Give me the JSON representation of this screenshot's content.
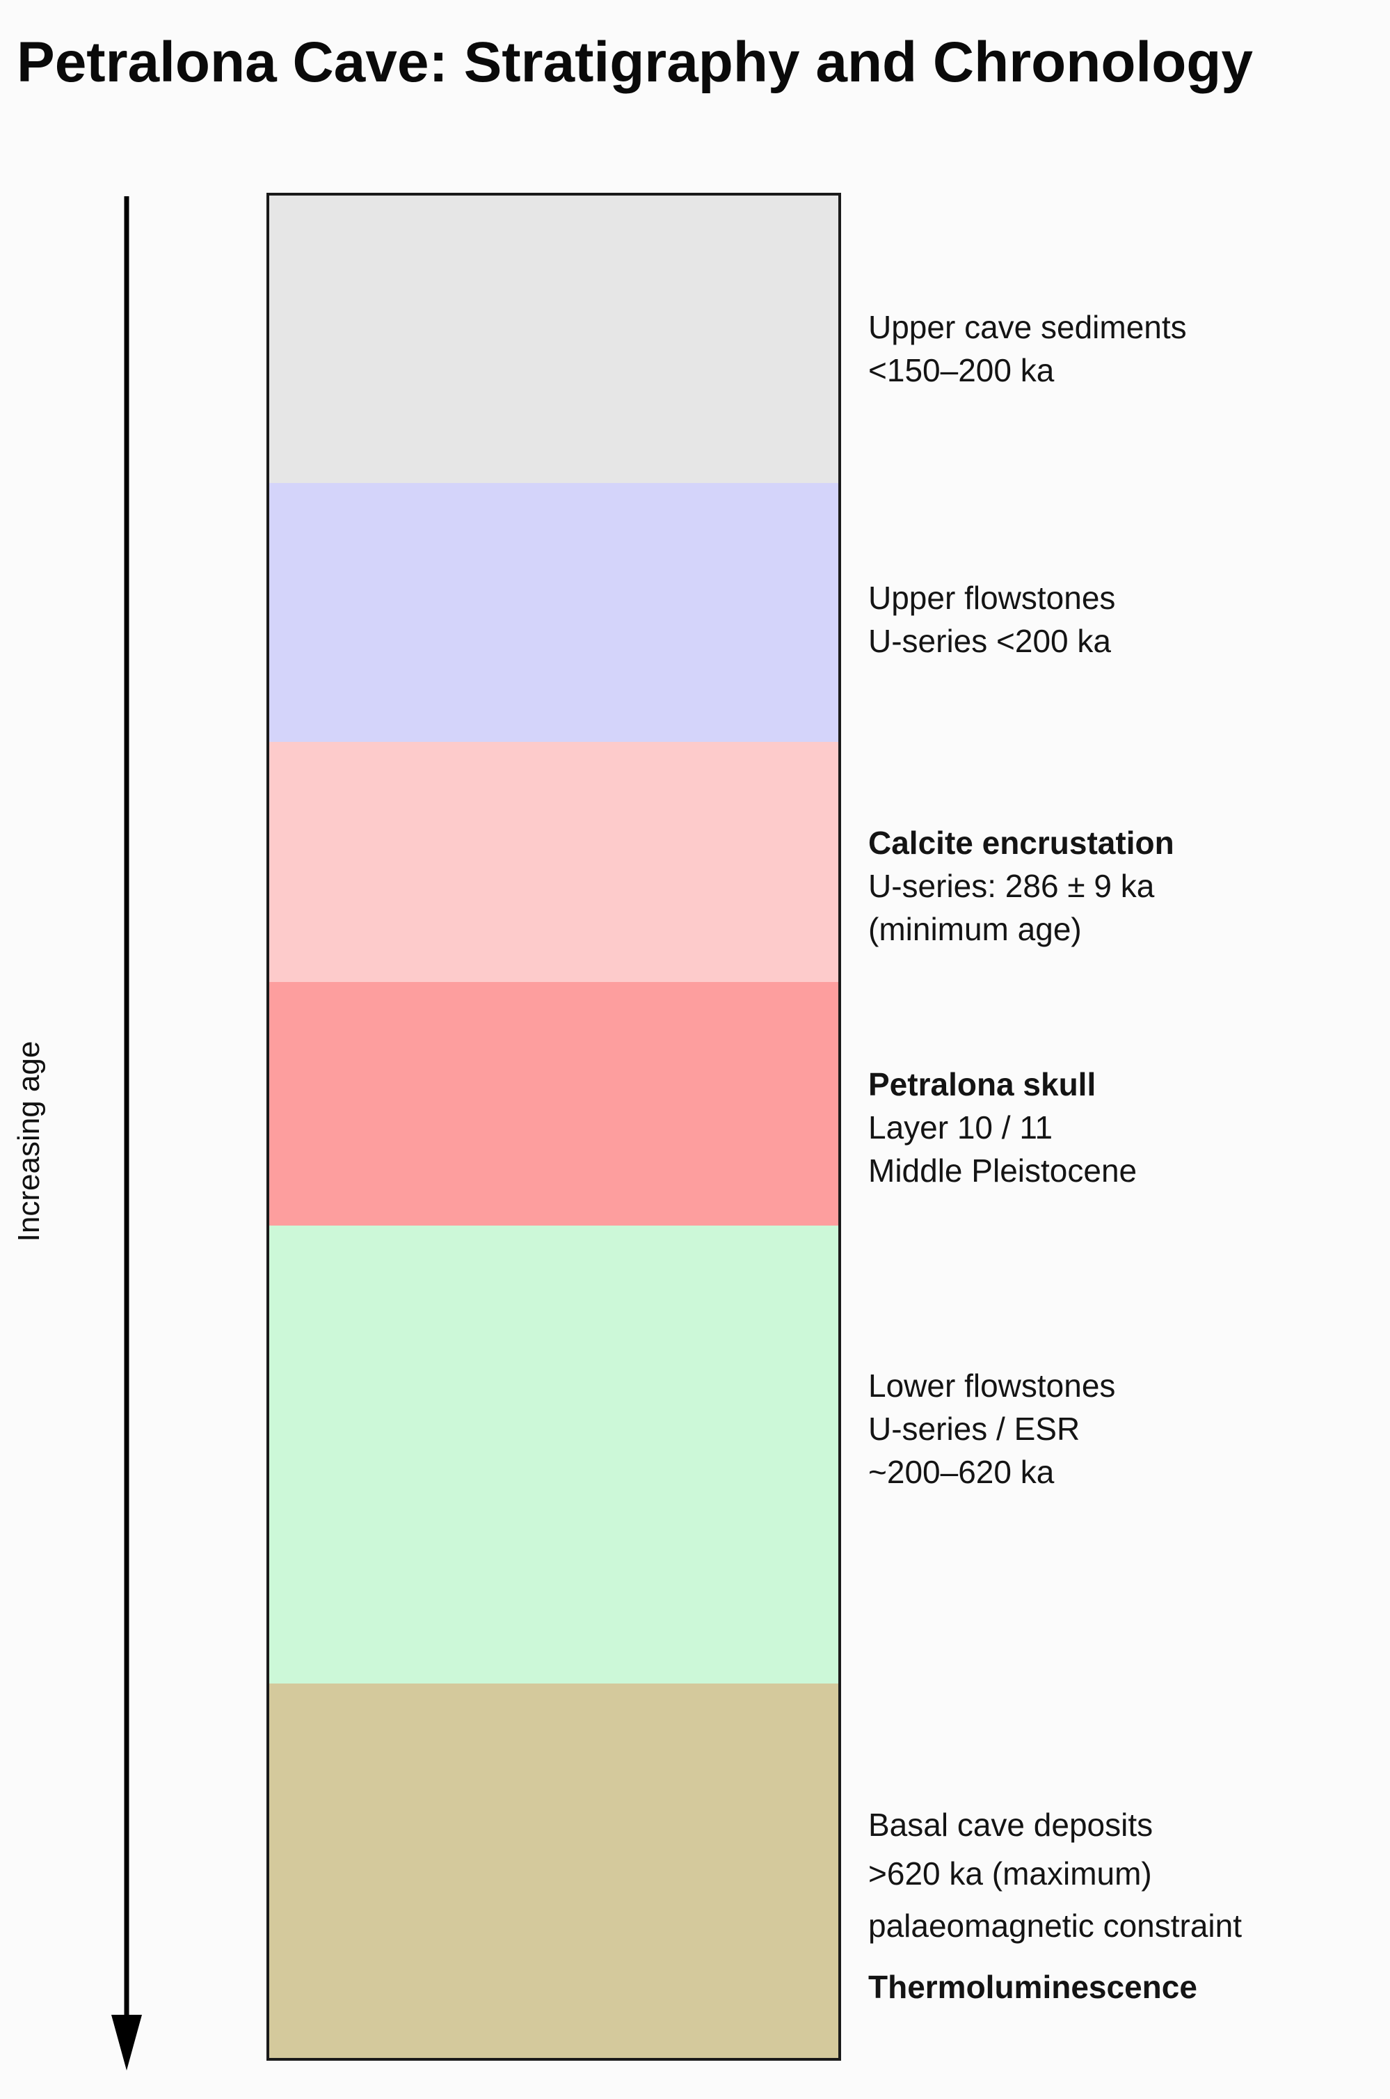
{
  "title": "Petralona Cave: Stratigraphy and Chronology",
  "axis": {
    "label": "Increasing age",
    "direction": "down"
  },
  "layers": [
    {
      "id": "upper-cave-sediments",
      "color": "#e6e6e6",
      "lines": [
        {
          "text": "Upper cave sediments",
          "bold": false
        },
        {
          "text": "<150–200 ka",
          "bold": false
        }
      ]
    },
    {
      "id": "upper-flowstones",
      "color": "#d4d4fa",
      "lines": [
        {
          "text": "Upper flowstones",
          "bold": false
        },
        {
          "text": "U-series <200 ka",
          "bold": false
        }
      ]
    },
    {
      "id": "calcite-encrustation",
      "color": "#fdcbcb",
      "lines": [
        {
          "text": "Calcite encrustation",
          "bold": true
        },
        {
          "text": "U-series: 286 ± 9 ka",
          "bold": false
        },
        {
          "text": "(minimum age)",
          "bold": false
        }
      ]
    },
    {
      "id": "petralona-skull",
      "color": "#fd9e9e",
      "lines": [
        {
          "text": "Petralona skull",
          "bold": true
        },
        {
          "text": "Layer 10 / 11",
          "bold": false
        },
        {
          "text": "Middle Pleistocene",
          "bold": false
        }
      ]
    },
    {
      "id": "lower-flowstones",
      "color": "#ccf8d8",
      "lines": [
        {
          "text": "Lower flowstones",
          "bold": false
        },
        {
          "text": "U-series / ESR",
          "bold": false
        },
        {
          "text": "~200–620 ka",
          "bold": false
        }
      ]
    },
    {
      "id": "basal-cave-deposits",
      "color": "#d4c99c",
      "lines": [
        {
          "text": "Basal cave deposits",
          "bold": false
        },
        {
          "text": ">620 ka (maximum)",
          "bold": false
        },
        {
          "text": "palaeomagnetic constraint",
          "bold": false
        },
        {
          "text": "Thermoluminescence",
          "bold": true
        }
      ]
    }
  ]
}
